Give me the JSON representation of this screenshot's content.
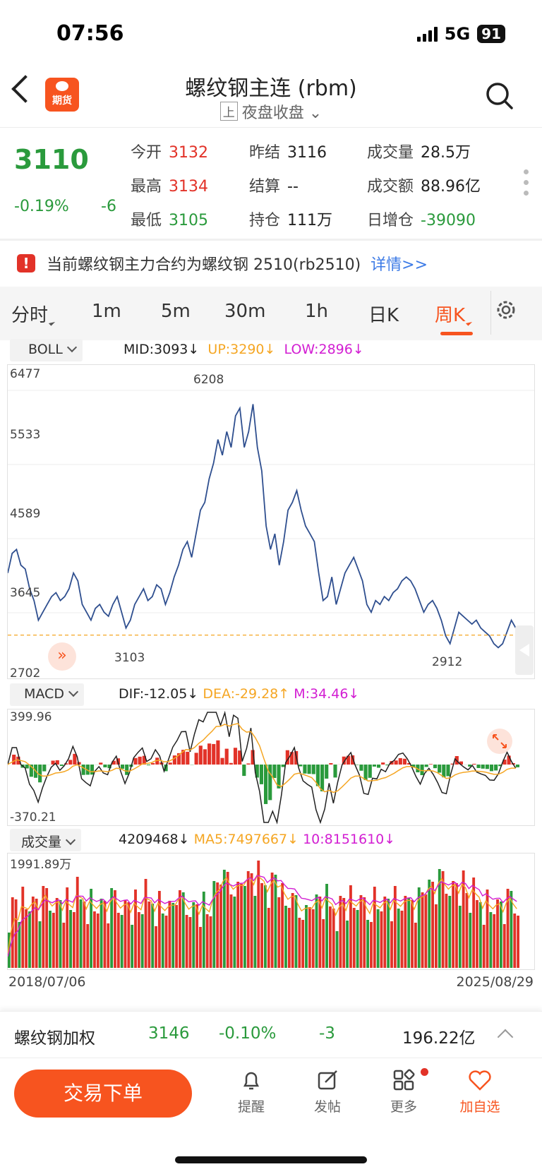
{
  "status": {
    "time": "07:56",
    "network": "5G",
    "battery": "91"
  },
  "header": {
    "logo_label": "期货",
    "title": "螺纹钢主连 (rbm)",
    "exchange_tag": "上",
    "session": "夜盘收盘"
  },
  "quote": {
    "price": "3110",
    "change_pct": "-0.19%",
    "change_abs": "-6",
    "fields": [
      {
        "label": "今开",
        "value": "3132"
      },
      {
        "label": "昨结",
        "value": "3116"
      },
      {
        "label": "成交量",
        "value": "28.5万"
      },
      {
        "label": "最高",
        "value": "3134"
      },
      {
        "label": "结算",
        "value": "--"
      },
      {
        "label": "成交额",
        "value": "88.96亿"
      },
      {
        "label": "最低",
        "value": "3105"
      },
      {
        "label": "持仓",
        "value": "111万"
      },
      {
        "label": "日增仓",
        "value": "-39090"
      }
    ]
  },
  "notice": {
    "text": "当前螺纹钢主力合约为螺纹钢 2510(rb2510)",
    "link": "详情>>"
  },
  "tabs": [
    "分时",
    "1m",
    "5m",
    "30m",
    "1h",
    "日K",
    "周K"
  ],
  "boll": {
    "name": "BOLL",
    "mid": "MID:3093↓",
    "up": "UP:3290↓",
    "low": "LOW:2896↓"
  },
  "macd": {
    "name": "MACD",
    "dif": "DIF:-12.05↓",
    "dea": "DEA:-29.28↑",
    "m": "M:34.46↓",
    "max": "399.96",
    "min": "-370.21"
  },
  "volume": {
    "name": "成交量",
    "vol": "4209468↓",
    "ma5": "MA5:7497667↓",
    "ma10": "10:8151610↓",
    "max": "1991.89万"
  },
  "colors": {
    "up": "#e23228",
    "down": "#2a9a3c",
    "accent": "#f7541f",
    "line": "#2f4f8f"
  },
  "chart_data": {
    "type": "line",
    "title": "",
    "y_ticks": [
      "6477",
      "5533",
      "4589",
      "3645",
      "2702"
    ],
    "annotations": {
      "high": "6208",
      "low_left": "3103",
      "low_right": "2912"
    },
    "x_start": "2018/07/06",
    "x_end": "2025/08/29",
    "ylim": [
      2702,
      6477
    ],
    "series": [
      {
        "values": [
          3900,
          4150,
          4200,
          4000,
          3950,
          3700,
          3550,
          3300,
          3400,
          3500,
          3600,
          3650,
          3550,
          3600,
          3700,
          3900,
          3800,
          3500,
          3400,
          3300,
          3450,
          3500,
          3400,
          3350,
          3500,
          3600,
          3400,
          3200,
          3300,
          3500,
          3600,
          3700,
          3550,
          3600,
          3750,
          3700,
          3500,
          3650,
          3850,
          4000,
          4200,
          4300,
          4100,
          4400,
          4700,
          4800,
          5100,
          5300,
          5600,
          5400,
          5700,
          5500,
          5900,
          6000,
          5500,
          5700,
          6050,
          5500,
          5200,
          4500,
          4200,
          4400,
          4000,
          4300,
          4700,
          4800,
          4950,
          4700,
          4500,
          4400,
          4300,
          3900,
          3550,
          3600,
          3850,
          3500,
          3700,
          3900,
          4000,
          4100,
          3950,
          3800,
          3500,
          3400,
          3550,
          3500,
          3600,
          3550,
          3650,
          3700,
          3800,
          3850,
          3800,
          3700,
          3550,
          3400,
          3500,
          3550,
          3450,
          3300,
          3100,
          3000,
          3200,
          3400,
          3350,
          3300,
          3250,
          3300,
          3200,
          3150,
          3100,
          3000,
          2950,
          3000,
          3150,
          3300,
          3200,
          3110
        ]
      }
    ]
  }
}
